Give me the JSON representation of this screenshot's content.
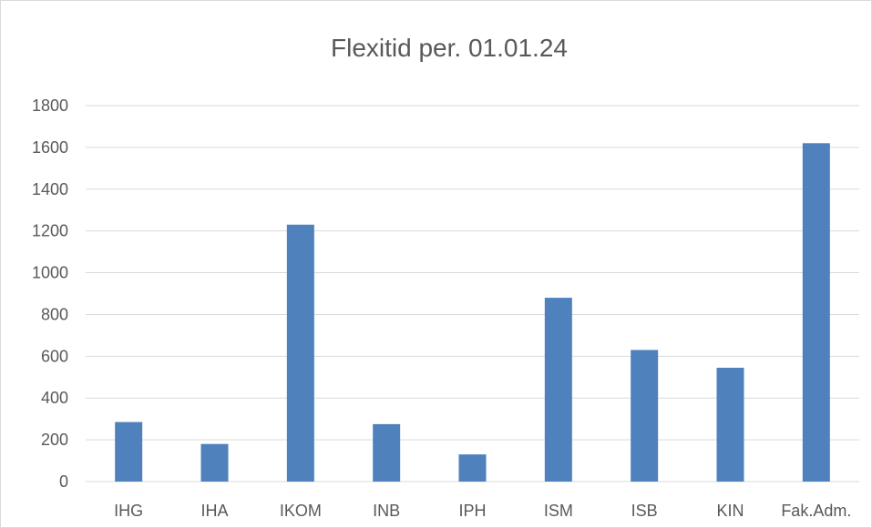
{
  "chart_data": {
    "type": "bar",
    "title": "Flexitid per. 01.01.24",
    "xlabel": "",
    "ylabel": "",
    "categories": [
      "IHG",
      "IHA",
      "IKOM",
      "INB",
      "IPH",
      "ISM",
      "ISB",
      "KIN",
      "Fak.Adm."
    ],
    "values": [
      285,
      180,
      1230,
      275,
      130,
      880,
      630,
      545,
      1620
    ],
    "ylim": [
      0,
      1800
    ],
    "yticks": [
      0,
      200,
      400,
      600,
      800,
      1000,
      1200,
      1400,
      1600,
      1800
    ],
    "grid": true,
    "legend": "none",
    "colors": {
      "bar": "#4f81bd",
      "grid": "#d9d9d9",
      "text": "#595959",
      "border": "#d9d9d9"
    }
  }
}
